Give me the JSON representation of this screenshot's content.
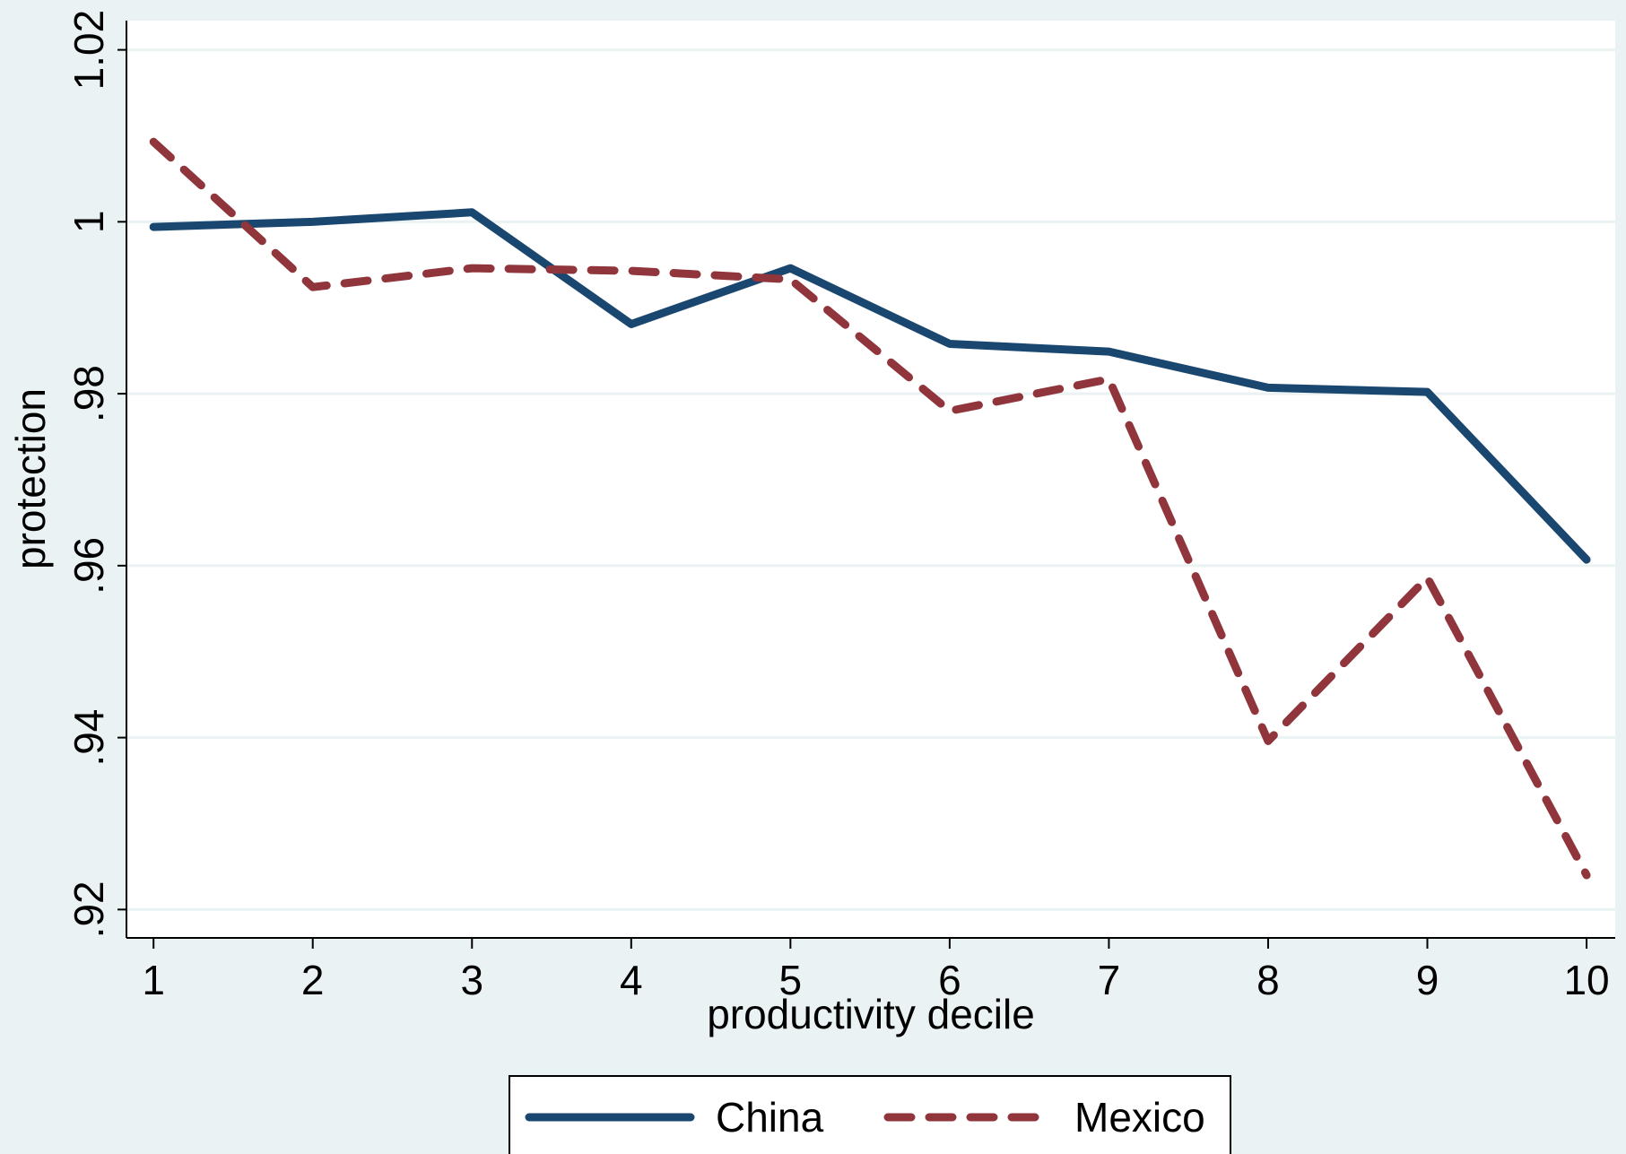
{
  "chart_data": {
    "type": "line",
    "x_label": "productivity decile",
    "y_label": "protection",
    "x": [
      1,
      2,
      3,
      4,
      5,
      6,
      7,
      8,
      9,
      10
    ],
    "series": [
      {
        "name": "China",
        "color": "#1a476f",
        "dash": false,
        "values": [
          0.9994,
          1.0,
          1.0011,
          0.9881,
          0.9946,
          0.9858,
          0.9849,
          0.9807,
          0.9802,
          0.9607
        ]
      },
      {
        "name": "Mexico",
        "color": "#90353b",
        "dash": true,
        "values": [
          1.0093,
          0.9924,
          0.9946,
          0.9943,
          0.9933,
          0.978,
          0.9817,
          0.9396,
          0.9586,
          0.924
        ]
      }
    ],
    "xlim": [
      0.83,
      10.18
    ],
    "xticks": [
      1,
      2,
      3,
      4,
      5,
      6,
      7,
      8,
      9,
      10
    ],
    "ylim": [
      0.9167,
      1.0234
    ],
    "yticks": [
      1.02,
      1,
      {
        "value": 0.98,
        "label": ".98"
      },
      {
        "value": 0.96,
        "label": ".96"
      },
      {
        "value": 0.94,
        "label": ".94"
      },
      {
        "value": 0.92,
        "label": ".92"
      }
    ],
    "grid": true,
    "legend": "bottom"
  }
}
